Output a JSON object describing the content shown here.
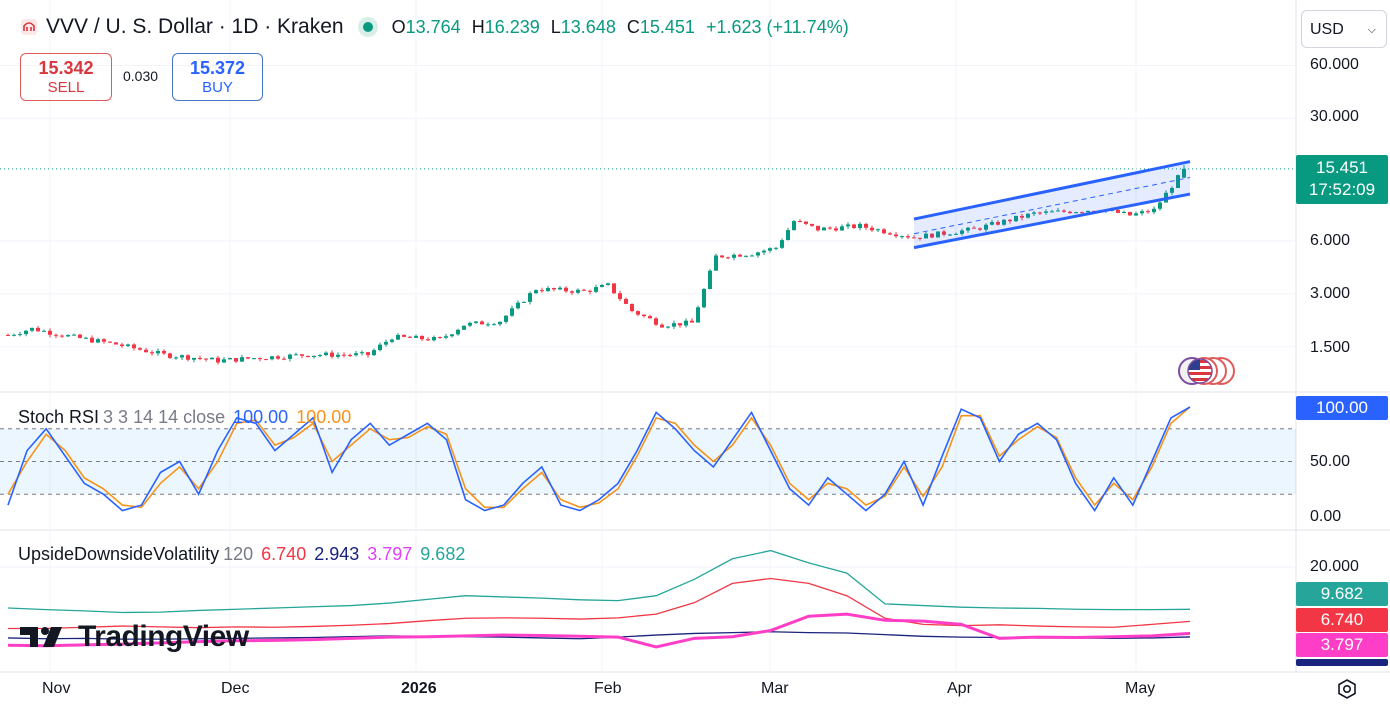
{
  "header": {
    "symbol": "VVV / U. S. Dollar · 1D · Kraken",
    "open_label": "O",
    "open": "13.764",
    "high_label": "H",
    "high": "16.239",
    "low_label": "L",
    "low": "13.648",
    "close_label": "C",
    "close": "15.451",
    "change": "+1.623 (+11.74%)"
  },
  "trade": {
    "sell_price": "15.342",
    "sell_label": "SELL",
    "spread": "0.030",
    "buy_price": "15.372",
    "buy_label": "BUY"
  },
  "currency": "USD",
  "price_axis": {
    "ticks": [
      "60.000",
      "30.000",
      "6.000",
      "3.000",
      "1.500"
    ],
    "last_price": "15.451",
    "countdown": "17:52:09"
  },
  "stoch": {
    "name": "Stoch RSI",
    "params": "3 3 14 14 close",
    "k_value": "100.00",
    "d_value": "100.00",
    "ticks": [
      "50.00",
      "0.00"
    ],
    "badge": "100.00"
  },
  "udv": {
    "name": "UpsideDownsideVolatility",
    "period": "120",
    "v1": "6.740",
    "v2": "2.943",
    "v3": "3.797",
    "v4": "9.682",
    "tick": "20.000"
  },
  "time_axis": [
    "Nov",
    "Dec",
    "2026",
    "Feb",
    "Mar",
    "Apr",
    "May"
  ],
  "brand": "TradingView",
  "icons": [
    "kraken-logo-icon",
    "market-open-dot-icon",
    "chevron-down-icon",
    "us-flag-icon",
    "tradingview-logo-icon",
    "gear-icon"
  ],
  "colors": {
    "up": "#089981",
    "down": "#f23645",
    "channel": "#2962ff",
    "stoch_k": "#2962ff",
    "stoch_d": "#f7931a",
    "udv1": "#f23645",
    "udv2": "#1a237e",
    "udv3": "#ff3ec8",
    "udv4": "#26a69a"
  },
  "chart_data": [
    {
      "type": "candlestick",
      "title": "VVV / U. S. Dollar · 1D · Kraken",
      "scale": "log",
      "ylim": [
        1.1,
        75
      ],
      "x_labels": [
        "Nov",
        "Dec",
        "2026",
        "Feb",
        "Mar",
        "Apr",
        "May"
      ],
      "x_range": [
        "2025-10-25",
        "2026-05-10"
      ],
      "anchors": [
        [
          "2025-10-25",
          1.75
        ],
        [
          "2025-10-29",
          1.9
        ],
        [
          "2025-11-05",
          1.7
        ],
        [
          "2025-11-12",
          1.55
        ],
        [
          "2025-11-20",
          1.35
        ],
        [
          "2025-11-25",
          1.3
        ],
        [
          "2025-11-29",
          1.25
        ],
        [
          "2025-12-06",
          1.3
        ],
        [
          "2025-12-14",
          1.35
        ],
        [
          "2025-12-24",
          1.35
        ],
        [
          "2025-12-28",
          1.7
        ],
        [
          "2026-01-05",
          1.65
        ],
        [
          "2026-01-09",
          2.0
        ],
        [
          "2026-01-15",
          2.1
        ],
        [
          "2026-01-21",
          3.2
        ],
        [
          "2026-01-29",
          3.1
        ],
        [
          "2026-02-02",
          3.35
        ],
        [
          "2026-02-06",
          2.4
        ],
        [
          "2026-02-11",
          2.0
        ],
        [
          "2026-02-16",
          2.05
        ],
        [
          "2026-02-20",
          4.9
        ],
        [
          "2026-02-26",
          5.1
        ],
        [
          "2026-03-02",
          5.5
        ],
        [
          "2026-03-05",
          7.8
        ],
        [
          "2026-03-09",
          7.0
        ],
        [
          "2026-03-16",
          7.3
        ],
        [
          "2026-03-25",
          6.3
        ],
        [
          "2026-04-04",
          7.0
        ],
        [
          "2026-04-14",
          8.6
        ],
        [
          "2026-04-25",
          9.1
        ],
        [
          "2026-04-30",
          8.4
        ],
        [
          "2026-05-04",
          9.0
        ],
        [
          "2026-05-08",
          13.76
        ],
        [
          "2026-05-09",
          15.451
        ]
      ],
      "last_candle": {
        "open": 13.764,
        "high": 16.239,
        "low": 13.648,
        "close": 15.451
      },
      "channel": {
        "start_date": "2026-03-25",
        "end_date": "2026-05-10",
        "upper": [
          8.0,
          17.0
        ],
        "lower": [
          5.5,
          11.1
        ],
        "mid": [
          6.6,
          13.8
        ]
      }
    },
    {
      "type": "line",
      "title": "Stoch RSI 3 3 14 14 close",
      "ylim": [
        0,
        100
      ],
      "bands": [
        20,
        50,
        80
      ],
      "series": [
        {
          "name": "K",
          "values": [
            10,
            60,
            80,
            55,
            30,
            20,
            5,
            10,
            40,
            50,
            20,
            60,
            90,
            85,
            60,
            75,
            90,
            40,
            70,
            85,
            65,
            75,
            85,
            70,
            15,
            5,
            10,
            30,
            45,
            10,
            5,
            15,
            30,
            60,
            95,
            80,
            60,
            45,
            70,
            95,
            60,
            25,
            10,
            35,
            20,
            5,
            20,
            50,
            10,
            55,
            98,
            90,
            50,
            75,
            85,
            70,
            30,
            5,
            35,
            10,
            50,
            90,
            100
          ]
        },
        {
          "name": "D",
          "values": [
            20,
            50,
            75,
            60,
            35,
            25,
            10,
            8,
            30,
            45,
            25,
            50,
            85,
            88,
            65,
            72,
            85,
            50,
            65,
            80,
            70,
            72,
            82,
            75,
            25,
            8,
            8,
            25,
            40,
            15,
            8,
            12,
            25,
            55,
            90,
            85,
            65,
            50,
            65,
            90,
            65,
            30,
            15,
            30,
            25,
            10,
            18,
            45,
            18,
            45,
            92,
            92,
            55,
            70,
            82,
            72,
            35,
            10,
            30,
            15,
            45,
            85,
            100
          ]
        }
      ]
    },
    {
      "type": "line",
      "title": "UpsideDownsideVolatility 120",
      "y_tick": 20,
      "series": [
        {
          "name": "6.740",
          "values": [
            5,
            5,
            5.3,
            5.6,
            5.4,
            5.2,
            5.4,
            5.3,
            5.5,
            5.8,
            6.2,
            6.9,
            7.5,
            7.6,
            7.5,
            7.3,
            7.6,
            8.5,
            11.3,
            16.0,
            17.2,
            16.0,
            13.0,
            7.5,
            6.0,
            5.7,
            5.9,
            5.6,
            5.4,
            5.3,
            6.0,
            6.74
          ]
        },
        {
          "name": "2.943",
          "values": [
            2.7,
            2.5,
            2.6,
            2.4,
            2.4,
            2.5,
            2.6,
            2.7,
            2.8,
            3.0,
            3.2,
            3.1,
            3.0,
            2.9,
            2.7,
            2.5,
            2.9,
            3.4,
            3.8,
            4.0,
            4.2,
            4.0,
            3.9,
            3.5,
            3.1,
            2.9,
            2.8,
            2.7,
            2.7,
            2.6,
            2.7,
            2.943
          ]
        },
        {
          "name": "3.797",
          "values": [
            0.9,
            0.8,
            1.0,
            1.2,
            1.5,
            1.8,
            2.0,
            2.1,
            2.3,
            2.6,
            2.9,
            3.0,
            3.2,
            3.4,
            3.3,
            3.1,
            2.9,
            0.5,
            2.6,
            3.0,
            4.5,
            8.0,
            8.5,
            7.0,
            6.8,
            6.0,
            2.6,
            2.9,
            2.8,
            3.0,
            3.2,
            3.797
          ]
        },
        {
          "name": "9.682",
          "values": [
            10,
            9.6,
            9.3,
            8.9,
            9.0,
            9.4,
            9.7,
            10.0,
            10.3,
            10.6,
            11.2,
            12.1,
            13.0,
            12.7,
            12.4,
            12.0,
            11.8,
            13.0,
            17.0,
            22.0,
            24.0,
            21.0,
            18.5,
            11.0,
            10.6,
            10.2,
            10.0,
            9.9,
            9.7,
            9.6,
            9.6,
            9.682
          ]
        }
      ]
    }
  ]
}
